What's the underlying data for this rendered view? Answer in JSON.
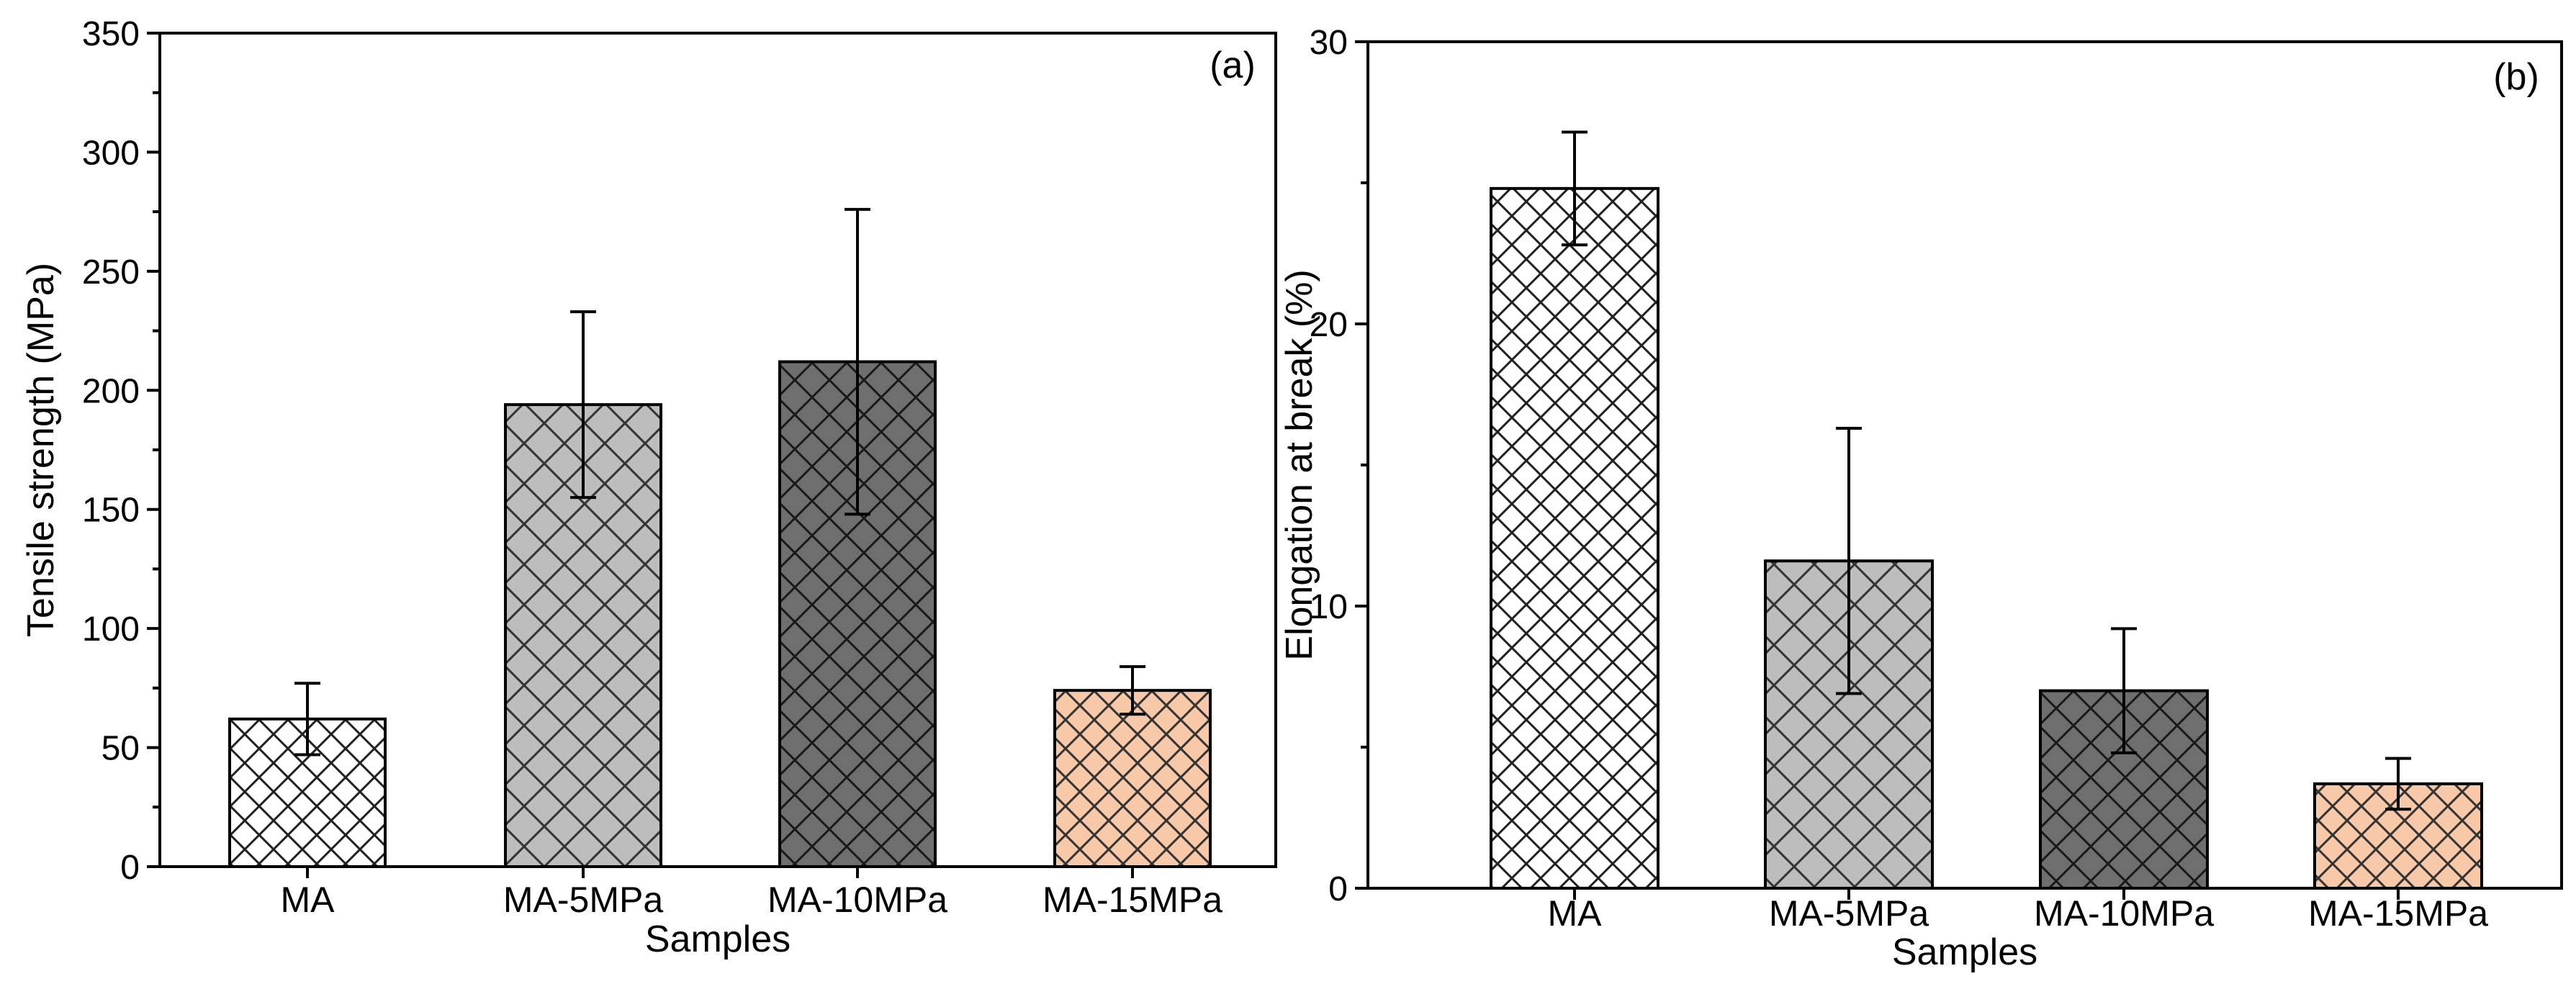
{
  "colors": {
    "axis": "#000000",
    "ma_fill": "#ffffff",
    "ma5_fill": "#bdbdbd",
    "ma10_fill": "#6f6f6f",
    "ma15_fill": "#f8c9a8",
    "hatch_dark": "#1a1a1a"
  },
  "chart_data": [
    {
      "type": "bar",
      "panel_label": "(a)",
      "title": "",
      "xlabel": "Samples",
      "ylabel": "Tensile strength (MPa)",
      "ylim": [
        0,
        350
      ],
      "yticks": [
        "0",
        "50",
        "100",
        "150",
        "200",
        "250",
        "300",
        "350"
      ],
      "yticks_values": [
        0,
        50,
        100,
        150,
        200,
        250,
        300,
        350
      ],
      "categories": [
        "MA",
        "MA-5MPa",
        "MA-10MPa",
        "MA-15MPa"
      ],
      "values": [
        62,
        194,
        212,
        74
      ],
      "errors": [
        15,
        39,
        64,
        10
      ],
      "grid": false
    },
    {
      "type": "bar",
      "panel_label": "(b)",
      "title": "",
      "xlabel": "Samples",
      "ylabel": "Elongation at break (%)",
      "ylim": [
        0,
        30
      ],
      "yticks": [
        "0",
        "10",
        "20",
        "30"
      ],
      "yticks_values": [
        0,
        10,
        20,
        30
      ],
      "categories": [
        "MA",
        "MA-5MPa",
        "MA-10MPa",
        "MA-15MPa"
      ],
      "values": [
        24.8,
        11.6,
        7.0,
        3.7
      ],
      "errors": [
        2.0,
        4.7,
        2.2,
        0.9
      ],
      "grid": false
    }
  ]
}
